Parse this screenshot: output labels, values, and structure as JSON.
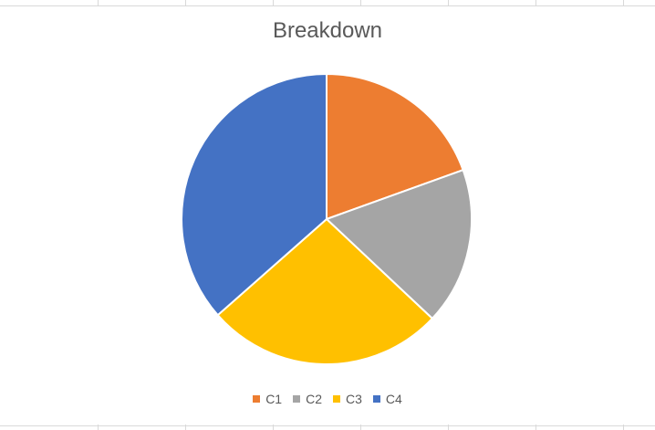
{
  "chart_data": {
    "type": "pie",
    "title": "Breakdown",
    "categories": [
      "C1",
      "C2",
      "C3",
      "C4"
    ],
    "values": [
      19.5,
      17.5,
      26.5,
      36.5
    ],
    "colors": [
      "#ED7D31",
      "#A5A5A5",
      "#FFC000",
      "#4472C4"
    ],
    "legend_position": "bottom",
    "start_angle_deg": 0,
    "direction": "clockwise"
  },
  "legend": [
    {
      "label": "C1",
      "color": "#ED7D31"
    },
    {
      "label": "C2",
      "color": "#A5A5A5"
    },
    {
      "label": "C3",
      "color": "#FFC000"
    },
    {
      "label": "C4",
      "color": "#4472C4"
    }
  ]
}
